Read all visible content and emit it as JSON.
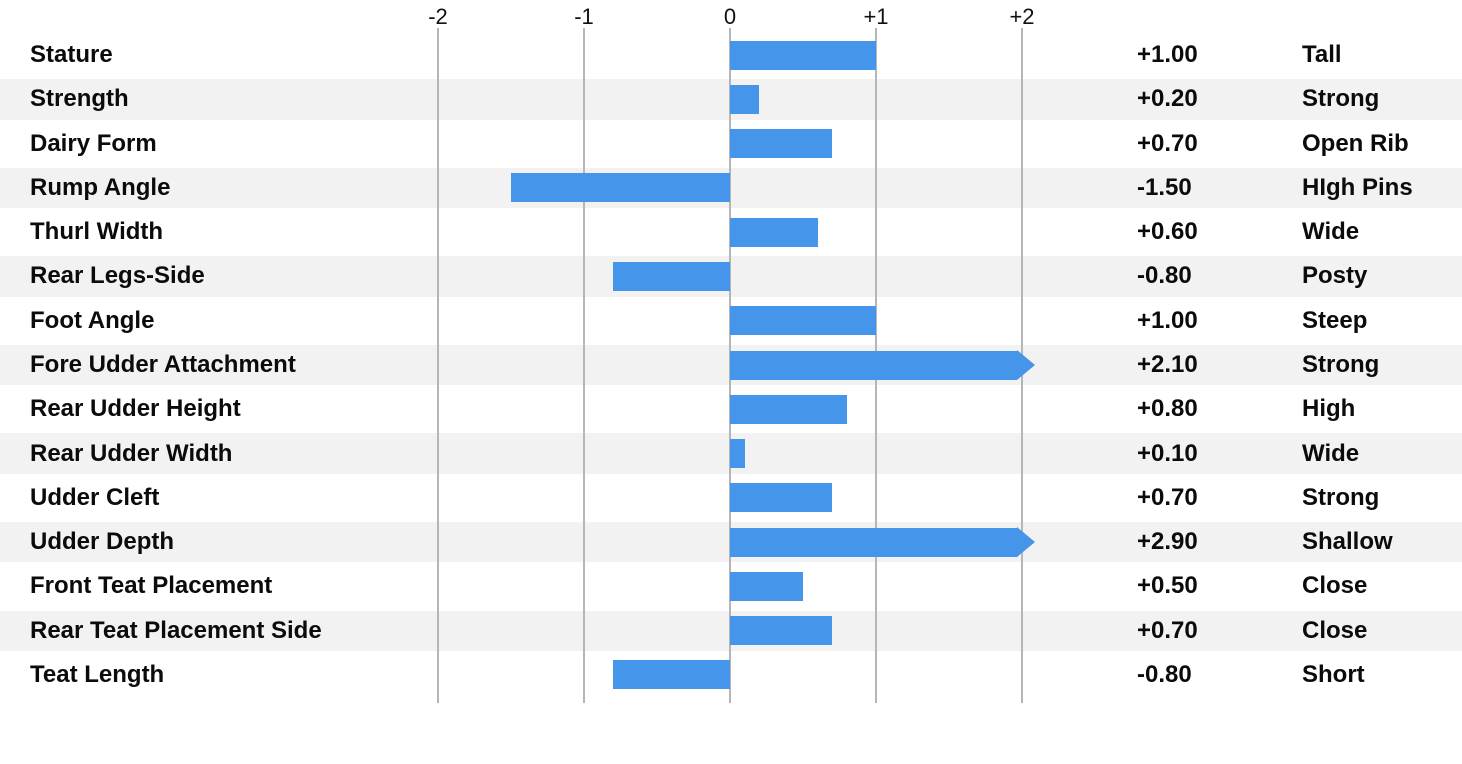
{
  "chart_data": {
    "type": "bar",
    "orientation": "horizontal",
    "title": "",
    "xlabel": "",
    "ylabel": "",
    "axis": {
      "min": -2,
      "max": 2,
      "grid": true,
      "ticks": [
        {
          "label": "-2",
          "value": -2
        },
        {
          "label": "-1",
          "value": -1
        },
        {
          "label": "0",
          "value": 0
        },
        {
          "label": "+1",
          "value": 1
        },
        {
          "label": "+2",
          "value": 2
        }
      ]
    },
    "bar_color": "#4596ea",
    "stripe_color": "#f2f2f3",
    "gridline_color": "#b6b6b8",
    "text_color": "#0b0b0b",
    "overflow_indicator": "arrow",
    "rows": [
      {
        "trait": "Stature",
        "value": 1.0,
        "value_label": "+1.00",
        "descriptor": "Tall"
      },
      {
        "trait": "Strength",
        "value": 0.2,
        "value_label": "+0.20",
        "descriptor": "Strong"
      },
      {
        "trait": "Dairy Form",
        "value": 0.7,
        "value_label": "+0.70",
        "descriptor": "Open Rib"
      },
      {
        "trait": "Rump Angle",
        "value": -1.5,
        "value_label": "-1.50",
        "descriptor": "HIgh Pins"
      },
      {
        "trait": "Thurl Width",
        "value": 0.6,
        "value_label": "+0.60",
        "descriptor": "Wide"
      },
      {
        "trait": "Rear Legs-Side",
        "value": -0.8,
        "value_label": "-0.80",
        "descriptor": "Posty"
      },
      {
        "trait": "Foot Angle",
        "value": 1.0,
        "value_label": "+1.00",
        "descriptor": "Steep"
      },
      {
        "trait": "Fore Udder Attachment",
        "value": 2.1,
        "value_label": "+2.10",
        "descriptor": "Strong"
      },
      {
        "trait": "Rear Udder Height",
        "value": 0.8,
        "value_label": "+0.80",
        "descriptor": "High"
      },
      {
        "trait": "Rear Udder Width",
        "value": 0.1,
        "value_label": "+0.10",
        "descriptor": "Wide"
      },
      {
        "trait": "Udder Cleft",
        "value": 0.7,
        "value_label": "+0.70",
        "descriptor": "Strong"
      },
      {
        "trait": "Udder Depth",
        "value": 2.9,
        "value_label": "+2.90",
        "descriptor": "Shallow"
      },
      {
        "trait": "Front Teat Placement",
        "value": 0.5,
        "value_label": "+0.50",
        "descriptor": "Close"
      },
      {
        "trait": "Rear Teat Placement Side",
        "value": 0.7,
        "value_label": "+0.70",
        "descriptor": "Close"
      },
      {
        "trait": "Teat Length",
        "value": -0.8,
        "value_label": "-0.80",
        "descriptor": "Short"
      }
    ]
  }
}
